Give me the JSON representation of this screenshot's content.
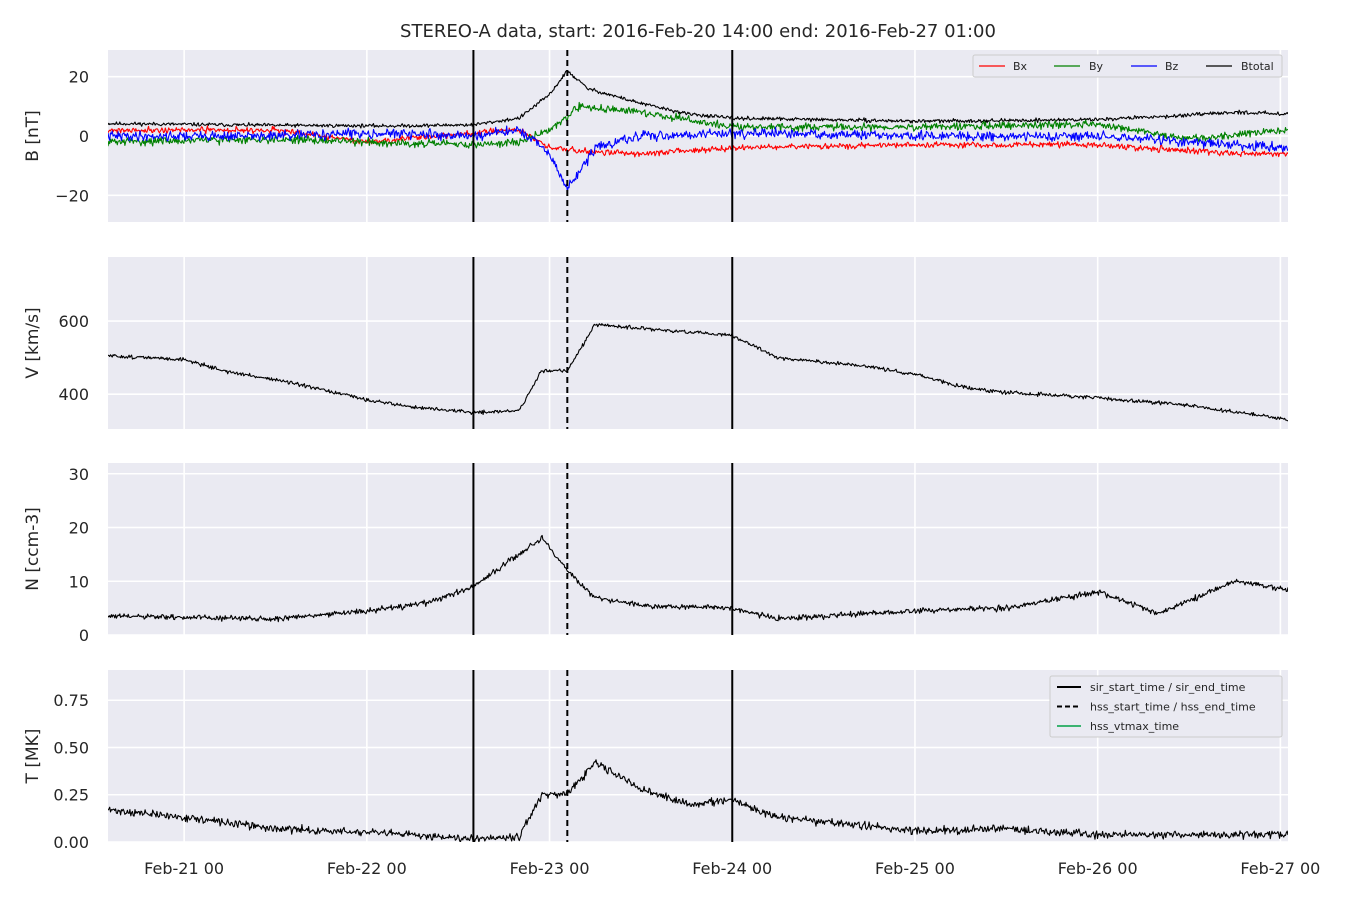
{
  "title": "STEREO-A data, start: 2016-Feb-20 14:00  end: 2016-Feb-27 01:00",
  "colors": {
    "panel_bg": "#eaeaf2",
    "grid": "#ffffff",
    "bx": "#ff0000",
    "by": "#008000",
    "bz": "#0000ff",
    "btotal": "#000000",
    "event_line": "#000000",
    "vtmax": "#3cb371"
  },
  "chart_data": {
    "type": "line",
    "x_range": [
      "2016-02-20 14:00",
      "2016-02-27 01:00"
    ],
    "x_ticks": [
      {
        "date": "2016-02-21 00:00",
        "label": "Feb-21 00"
      },
      {
        "date": "2016-02-22 00:00",
        "label": "Feb-22 00"
      },
      {
        "date": "2016-02-23 00:00",
        "label": "Feb-23 00"
      },
      {
        "date": "2016-02-24 00:00",
        "label": "Feb-24 00"
      },
      {
        "date": "2016-02-25 00:00",
        "label": "Feb-25 00"
      },
      {
        "date": "2016-02-26 00:00",
        "label": "Feb-26 00"
      },
      {
        "date": "2016-02-27 00:00",
        "label": "Feb-27 00"
      }
    ],
    "events": {
      "sir_start_time": "2016-02-22 14:00",
      "hss_start_time": "2016-02-23 02:20",
      "sir_end_time": "2016-02-24 00:00"
    },
    "legends": {
      "b": [
        "Bx",
        "By",
        "Bz",
        "Btotal"
      ],
      "t": [
        "sir_start_time / sir_end_time",
        "hss_start_time / hss_end_time",
        "hss_vtmax_time"
      ]
    },
    "panels": [
      {
        "id": "b",
        "ylabel": "B [nT]",
        "ylim": [
          -29,
          29
        ],
        "yticks": [
          -20,
          0,
          20
        ],
        "ytick_labels": [
          "−20",
          "0",
          "20"
        ],
        "series": [
          {
            "name": "Btotal",
            "color_key": "btotal",
            "noise": 0.6,
            "seed": 11,
            "points": [
              [
                "2016-02-20 14:00",
                4.2
              ],
              [
                "2016-02-21 12:00",
                3.6
              ],
              [
                "2016-02-22 04:00",
                3.4
              ],
              [
                "2016-02-22 14:00",
                3.8
              ],
              [
                "2016-02-22 20:00",
                6
              ],
              [
                "2016-02-23 00:00",
                14
              ],
              [
                "2016-02-23 02:20",
                22
              ],
              [
                "2016-02-23 05:00",
                16
              ],
              [
                "2016-02-23 12:00",
                11
              ],
              [
                "2016-02-23 18:00",
                7.5
              ],
              [
                "2016-02-24 00:00",
                6
              ],
              [
                "2016-02-24 12:00",
                5.5
              ],
              [
                "2016-02-25 00:00",
                5
              ],
              [
                "2016-02-25 12:00",
                5.2
              ],
              [
                "2016-02-26 00:00",
                5.6
              ],
              [
                "2016-02-26 12:00",
                7
              ],
              [
                "2016-02-26 18:00",
                8
              ],
              [
                "2016-02-27 01:00",
                7.5
              ]
            ]
          },
          {
            "name": "Bx",
            "color_key": "bx",
            "noise": 1.0,
            "seed": 21,
            "points": [
              [
                "2016-02-20 14:00",
                2
              ],
              [
                "2016-02-21 12:00",
                2
              ],
              [
                "2016-02-22 00:00",
                -2
              ],
              [
                "2016-02-22 14:00",
                1
              ],
              [
                "2016-02-22 20:00",
                2
              ],
              [
                "2016-02-23 00:00",
                -4
              ],
              [
                "2016-02-23 04:00",
                -5
              ],
              [
                "2016-02-23 12:00",
                -6
              ],
              [
                "2016-02-24 00:00",
                -4
              ],
              [
                "2016-02-25 00:00",
                -3
              ],
              [
                "2016-02-26 00:00",
                -3
              ],
              [
                "2016-02-26 18:00",
                -6
              ],
              [
                "2016-02-27 01:00",
                -6
              ]
            ]
          },
          {
            "name": "By",
            "color_key": "by",
            "noise": 1.3,
            "seed": 31,
            "points": [
              [
                "2016-02-20 14:00",
                -2
              ],
              [
                "2016-02-21 12:00",
                -1
              ],
              [
                "2016-02-22 00:00",
                -2
              ],
              [
                "2016-02-22 14:00",
                -3
              ],
              [
                "2016-02-22 20:00",
                -2
              ],
              [
                "2016-02-23 00:00",
                2
              ],
              [
                "2016-02-23 04:00",
                10
              ],
              [
                "2016-02-23 12:00",
                8
              ],
              [
                "2016-02-24 00:00",
                3
              ],
              [
                "2016-02-25 00:00",
                3
              ],
              [
                "2016-02-26 00:00",
                4
              ],
              [
                "2016-02-26 12:00",
                -1
              ],
              [
                "2016-02-27 01:00",
                2
              ]
            ]
          },
          {
            "name": "Bz",
            "color_key": "bz",
            "noise": 1.6,
            "seed": 41,
            "points": [
              [
                "2016-02-20 14:00",
                0
              ],
              [
                "2016-02-21 12:00",
                0
              ],
              [
                "2016-02-22 00:00",
                1
              ],
              [
                "2016-02-22 14:00",
                0
              ],
              [
                "2016-02-22 20:00",
                2
              ],
              [
                "2016-02-23 00:00",
                -6
              ],
              [
                "2016-02-23 02:20",
                -18
              ],
              [
                "2016-02-23 06:00",
                -4
              ],
              [
                "2016-02-23 12:00",
                0
              ],
              [
                "2016-02-24 00:00",
                1
              ],
              [
                "2016-02-25 00:00",
                0
              ],
              [
                "2016-02-26 00:00",
                0
              ],
              [
                "2016-02-26 18:00",
                -3
              ],
              [
                "2016-02-27 01:00",
                -4
              ]
            ]
          }
        ]
      },
      {
        "id": "v",
        "ylabel": "V [km/s]",
        "ylim": [
          305,
          775
        ],
        "yticks": [
          400,
          600
        ],
        "ytick_labels": [
          "400",
          "600"
        ],
        "series": [
          {
            "name": "V",
            "color_key": "btotal",
            "noise": 5,
            "seed": 51,
            "points": [
              [
                "2016-02-20 14:00",
                505
              ],
              [
                "2016-02-21 00:00",
                495
              ],
              [
                "2016-02-21 06:00",
                460
              ],
              [
                "2016-02-21 12:00",
                440
              ],
              [
                "2016-02-22 00:00",
                385
              ],
              [
                "2016-02-22 06:00",
                365
              ],
              [
                "2016-02-22 14:00",
                350
              ],
              [
                "2016-02-22 20:00",
                355
              ],
              [
                "2016-02-22 23:00",
                465
              ],
              [
                "2016-02-23 02:20",
                465
              ],
              [
                "2016-02-23 06:00",
                590
              ],
              [
                "2016-02-23 12:00",
                580
              ],
              [
                "2016-02-23 18:00",
                570
              ],
              [
                "2016-02-24 00:00",
                560
              ],
              [
                "2016-02-24 06:00",
                500
              ],
              [
                "2016-02-24 18:00",
                475
              ],
              [
                "2016-02-25 00:00",
                455
              ],
              [
                "2016-02-25 06:00",
                420
              ],
              [
                "2016-02-25 12:00",
                405
              ],
              [
                "2016-02-26 00:00",
                390
              ],
              [
                "2016-02-26 12:00",
                370
              ],
              [
                "2016-02-27 01:00",
                330
              ]
            ]
          }
        ]
      },
      {
        "id": "n",
        "ylabel": "N [ccm-3]",
        "ylim": [
          0,
          32
        ],
        "yticks": [
          0,
          10,
          20,
          30
        ],
        "ytick_labels": [
          "0",
          "10",
          "20",
          "30"
        ],
        "series": [
          {
            "name": "N",
            "color_key": "btotal",
            "noise": 0.5,
            "seed": 61,
            "points": [
              [
                "2016-02-20 14:00",
                3.5
              ],
              [
                "2016-02-21 12:00",
                3
              ],
              [
                "2016-02-22 00:00",
                4.5
              ],
              [
                "2016-02-22 08:00",
                6
              ],
              [
                "2016-02-22 14:00",
                9
              ],
              [
                "2016-02-22 20:00",
                15
              ],
              [
                "2016-02-22 23:00",
                18
              ],
              [
                "2016-02-23 02:20",
                12
              ],
              [
                "2016-02-23 06:00",
                7
              ],
              [
                "2016-02-23 12:00",
                5.5
              ],
              [
                "2016-02-24 00:00",
                5
              ],
              [
                "2016-02-24 06:00",
                3
              ],
              [
                "2016-02-25 00:00",
                4.5
              ],
              [
                "2016-02-25 12:00",
                5
              ],
              [
                "2016-02-26 00:00",
                8
              ],
              [
                "2016-02-26 08:00",
                4
              ],
              [
                "2016-02-26 18:00",
                10
              ],
              [
                "2016-02-27 01:00",
                8.5
              ]
            ]
          }
        ]
      },
      {
        "id": "t",
        "ylabel": "T [MK]",
        "ylim": [
          0,
          0.91
        ],
        "yticks": [
          0.0,
          0.25,
          0.5,
          0.75
        ],
        "ytick_labels": [
          "0.00",
          "0.25",
          "0.50",
          "0.75"
        ],
        "series": [
          {
            "name": "T",
            "color_key": "btotal",
            "noise": 0.02,
            "seed": 71,
            "points": [
              [
                "2016-02-20 14:00",
                0.17
              ],
              [
                "2016-02-21 00:00",
                0.13
              ],
              [
                "2016-02-21 12:00",
                0.07
              ],
              [
                "2016-02-22 00:00",
                0.05
              ],
              [
                "2016-02-22 14:00",
                0.02
              ],
              [
                "2016-02-22 20:00",
                0.03
              ],
              [
                "2016-02-22 23:00",
                0.25
              ],
              [
                "2016-02-23 02:20",
                0.25
              ],
              [
                "2016-02-23 06:00",
                0.42
              ],
              [
                "2016-02-23 12:00",
                0.28
              ],
              [
                "2016-02-23 18:00",
                0.2
              ],
              [
                "2016-02-24 00:00",
                0.22
              ],
              [
                "2016-02-24 06:00",
                0.13
              ],
              [
                "2016-02-25 00:00",
                0.06
              ],
              [
                "2016-02-25 12:00",
                0.07
              ],
              [
                "2016-02-26 00:00",
                0.04
              ],
              [
                "2016-02-27 01:00",
                0.04
              ]
            ]
          }
        ]
      }
    ]
  }
}
